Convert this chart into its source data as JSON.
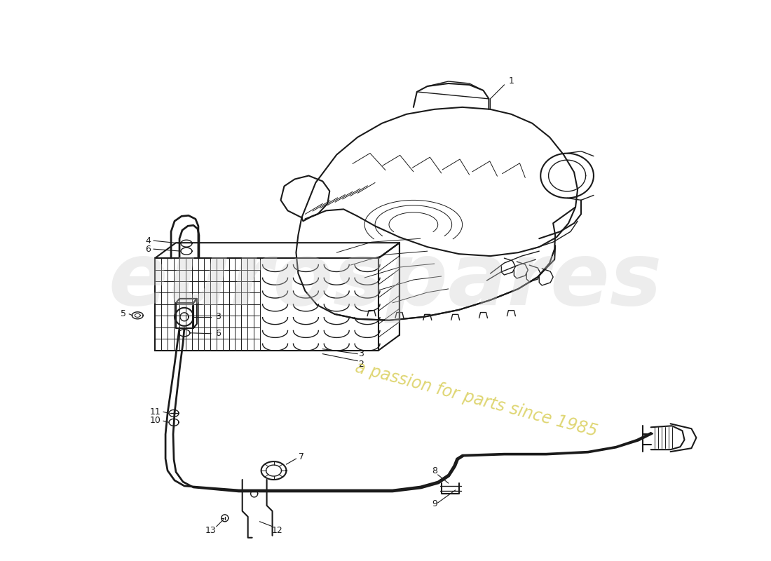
{
  "bg_color": "#ffffff",
  "line_color": "#1a1a1a",
  "watermark1": "eurospares",
  "watermark2": "a passion for parts since 1985",
  "wm1_color": "#cccccc",
  "wm2_color": "#d4c844",
  "figsize": [
    11.0,
    8.0
  ],
  "dpi": 100
}
